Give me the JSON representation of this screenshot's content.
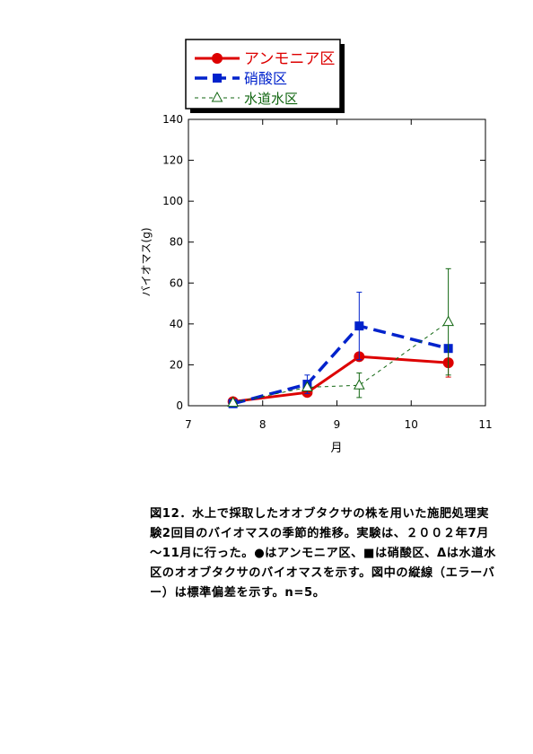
{
  "chart_data": {
    "type": "line",
    "xlabel": "月",
    "ylabel": "バイオマス(g)",
    "xlim": [
      7,
      11
    ],
    "ylim": [
      0,
      140
    ],
    "x_ticks": [
      "7",
      "8",
      "9",
      "10",
      "11"
    ],
    "y_ticks": [
      "0",
      "20",
      "40",
      "60",
      "80",
      "100",
      "120",
      "140"
    ],
    "grid": false,
    "legend_position": "top-left, outside the plot area",
    "series": [
      {
        "name": "アンモニア区",
        "color": "#dd0000",
        "marker": "circle",
        "line_style": "solid",
        "points": [
          {
            "x": 7.6,
            "y": 2,
            "err": 0
          },
          {
            "x": 8.6,
            "y": 6.5,
            "err": 0
          },
          {
            "x": 9.3,
            "y": 24,
            "err": 0
          },
          {
            "x": 10.5,
            "y": 21,
            "err": 7
          }
        ]
      },
      {
        "name": "硝酸区",
        "color": "#0022cc",
        "marker": "square",
        "line_style": "dashed",
        "points": [
          {
            "x": 7.6,
            "y": 1,
            "err": 0
          },
          {
            "x": 8.6,
            "y": 10.5,
            "err": 4.5
          },
          {
            "x": 9.3,
            "y": 39,
            "err": 16.5
          },
          {
            "x": 10.5,
            "y": 28,
            "err": 0
          }
        ]
      },
      {
        "name": "水道水区",
        "color": "#116611",
        "marker": "triangle-open",
        "line_style": "dotted",
        "points": [
          {
            "x": 7.6,
            "y": 1.5,
            "err": 0
          },
          {
            "x": 8.6,
            "y": 9,
            "err": 0
          },
          {
            "x": 9.3,
            "y": 10,
            "err": 6
          },
          {
            "x": 10.5,
            "y": 41,
            "err": 26
          }
        ]
      }
    ]
  },
  "caption": "図12．水上で採取したオオブタクサの株を用いた施肥処理実験2回目のバイオマスの季節的推移。実験は、２００２年7月～11月に行った。●はアンモニア区、■は硝酸区、Δは水道水区のオオブタクサのバイオマスを示す。図中の縦線（エラーバー）は標準偏差を示す。n=5。"
}
